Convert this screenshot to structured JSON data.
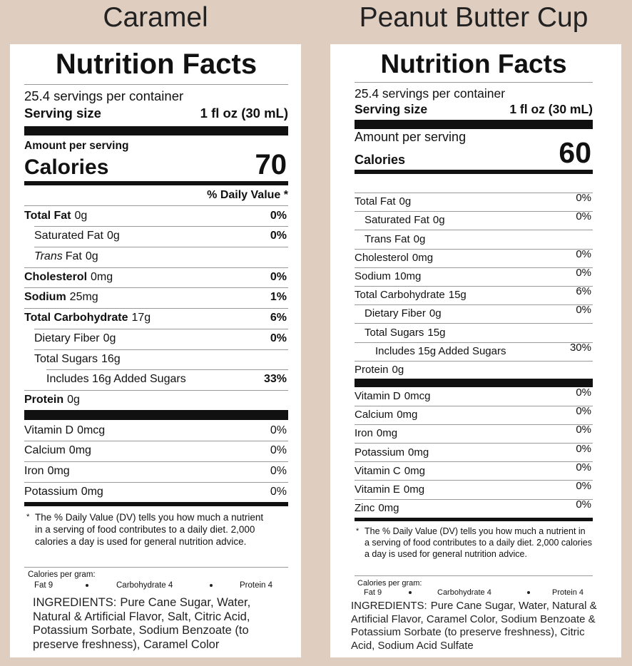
{
  "panels": [
    {
      "product": "Caramel",
      "title": "Nutrition Facts",
      "servings": "25.4 servings per container",
      "serving_size_label": "Serving size",
      "serving_size": "1 fl oz (30 mL)",
      "amount_per_serving": "Amount per serving",
      "calories_label": "Calories",
      "calories": 70,
      "dv_header": "% Daily Value *",
      "nutrients": [
        {
          "name": "Total Fat",
          "amount": "0g",
          "dv": "0%"
        },
        {
          "name": "Saturated Fat",
          "amount": "0g",
          "dv": "0%"
        },
        {
          "name_italic": "Trans",
          "name": "Fat",
          "amount": "0g"
        },
        {
          "name": "Cholesterol",
          "amount": "0mg",
          "dv": "0%"
        },
        {
          "name": "Sodium",
          "amount": "25mg",
          "dv": "1%"
        },
        {
          "name": "Total Carbohydrate",
          "amount": "17g",
          "dv": "6%"
        },
        {
          "name": "Dietary Fiber",
          "amount": "0g",
          "dv": "0%"
        },
        {
          "name": "Total Sugars",
          "amount": "16g"
        },
        {
          "name": "Includes 16g Added Sugars",
          "dv": "33%"
        },
        {
          "name": "Protein",
          "amount": "0g"
        }
      ],
      "vitamins": [
        {
          "name": "Vitamin D",
          "amount": "0mcg",
          "dv": "0%"
        },
        {
          "name": "Calcium",
          "amount": "0mg",
          "dv": "0%"
        },
        {
          "name": "Iron",
          "amount": "0mg",
          "dv": "0%"
        },
        {
          "name": "Potassium",
          "amount": "0mg",
          "dv": "0%"
        }
      ],
      "footnote_mark": "*",
      "footnote": "The % Daily Value (DV) tells you how much a nutrient in a serving of food contributes to a daily diet. 2,000 calories a day is used for general nutrition advice.",
      "calories_per_gram": "Calories per gram:",
      "calories_per_gram_items": [
        "Fat 9",
        "Carbohydrate 4",
        "Protein 4"
      ],
      "ingredients_label": "INGREDIENTS:",
      "ingredients": "Pure Cane Sugar, Water, Natural & Artificial Flavor, Salt, Citric Acid, Potassium Sorbate, Sodium Benzoate (to preserve freshness), Caramel Color"
    },
    {
      "product": "Peanut Butter Cup",
      "title": "Nutrition Facts",
      "servings": "25.4 servings per container",
      "serving_size_label": "Serving size",
      "serving_size": "1 fl oz (30 mL)",
      "amount_per_serving": "Amount per serving",
      "calories_label": "Calories",
      "calories": 60,
      "nutrients": [
        {
          "name": "Total Fat",
          "amount": "0g",
          "dv": "0%"
        },
        {
          "name": "Saturated Fat",
          "amount": "0g",
          "dv": "0%"
        },
        {
          "name": "Trans Fat",
          "amount": "0g"
        },
        {
          "name": "Cholesterol",
          "amount": "0mg",
          "dv": "0%"
        },
        {
          "name": "Sodium",
          "amount": "10mg",
          "dv": "0%"
        },
        {
          "name": "Total Carbohydrate",
          "amount": "15g",
          "dv": "6%"
        },
        {
          "name": "Dietary Fiber",
          "amount": "0g",
          "dv": "0%"
        },
        {
          "name": "Total Sugars",
          "amount": "15g"
        },
        {
          "name": "Includes 15g Added Sugars",
          "dv": "30%"
        },
        {
          "name": "Protein",
          "amount": "0g"
        }
      ],
      "vitamins": [
        {
          "name": "Vitamin D",
          "amount": "0mcg",
          "dv": "0%"
        },
        {
          "name": "Calcium",
          "amount": "0mg",
          "dv": "0%"
        },
        {
          "name": "Iron",
          "amount": "0mg",
          "dv": "0%"
        },
        {
          "name": "Potassium",
          "amount": "0mg",
          "dv": "0%"
        },
        {
          "name": "Vitamin C",
          "amount": "0mg",
          "dv": "0%"
        },
        {
          "name": "Vitamin E",
          "amount": "0mg",
          "dv": "0%"
        },
        {
          "name": "Zinc",
          "amount": "0mg",
          "dv": "0%"
        }
      ],
      "footnote_mark": "*",
      "footnote": "The % Daily Value (DV) tells you how much a nutrient in a serving of food contributes to a daily diet. 2,000 calories a day is used for general nutrition advice.",
      "calories_per_gram": "Calories per gram:",
      "calories_per_gram_items": [
        "Fat 9",
        "Carbohydrate 4",
        "Protein 4"
      ],
      "ingredients_label": "INGREDIENTS:",
      "ingredients": "Pure Cane Sugar, Water, Natural & Artificial Flavor, Caramel Color, Sodium Benzoate & Potassium Sorbate (to preserve freshness), Citric Acid, Sodium Acid Sulfate"
    }
  ]
}
